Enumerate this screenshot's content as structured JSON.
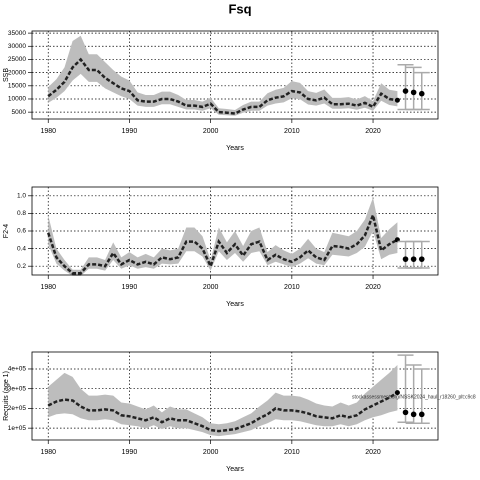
{
  "chart_data": [
    {
      "type": "line",
      "title": "Fsq",
      "ylabel": "SSB",
      "xlabel": "Years",
      "x": [
        1980,
        1981,
        1982,
        1983,
        1984,
        1985,
        1986,
        1987,
        1988,
        1989,
        1990,
        1991,
        1992,
        1993,
        1994,
        1995,
        1996,
        1997,
        1998,
        1999,
        2000,
        2001,
        2002,
        2003,
        2004,
        2005,
        2006,
        2007,
        2008,
        2009,
        2010,
        2011,
        2012,
        2013,
        2014,
        2015,
        2016,
        2017,
        2018,
        2019,
        2020,
        2021,
        2022,
        2023
      ],
      "values": [
        11000,
        13500,
        16500,
        22000,
        25000,
        21000,
        21000,
        18000,
        16000,
        14000,
        13000,
        9500,
        9000,
        9000,
        10000,
        10000,
        9000,
        7500,
        7500,
        7000,
        8200,
        5000,
        4800,
        4500,
        6000,
        7000,
        7000,
        9500,
        10500,
        11000,
        13000,
        12500,
        10000,
        9500,
        10500,
        8000,
        8000,
        8200,
        7500,
        8500,
        7000,
        12000,
        10000,
        9500
      ],
      "lower": [
        8500,
        10500,
        13000,
        17000,
        19500,
        16500,
        16500,
        14000,
        12500,
        11000,
        10000,
        7500,
        7000,
        7000,
        8000,
        8000,
        7000,
        6000,
        6000,
        5500,
        6500,
        4000,
        3800,
        3600,
        4800,
        5500,
        5500,
        7500,
        8300,
        8700,
        10300,
        9900,
        7900,
        7500,
        8300,
        6300,
        6300,
        6500,
        5900,
        6700,
        5500,
        9300,
        7700,
        7200
      ],
      "upper": [
        14500,
        17500,
        22000,
        32000,
        34000,
        27000,
        27000,
        24000,
        21000,
        18500,
        17000,
        12500,
        11500,
        11500,
        12800,
        12800,
        11500,
        9600,
        9600,
        9000,
        10500,
        6500,
        6200,
        5800,
        7700,
        9000,
        9000,
        12200,
        13500,
        14200,
        16800,
        16100,
        13000,
        12300,
        13600,
        10400,
        10400,
        10700,
        9800,
        11100,
        9200,
        16000,
        13500,
        13000
      ],
      "forecast": {
        "x": [
          2024,
          2025,
          2026
        ],
        "values": [
          13000,
          12500,
          12000
        ],
        "lower": [
          6000,
          6000,
          6000
        ],
        "upper": [
          23000,
          22000,
          20000
        ]
      },
      "xlim": [
        1978,
        2028
      ],
      "xticks": [
        1980,
        1990,
        2000,
        2010,
        2020
      ],
      "ylim": [
        2400,
        35800
      ],
      "yticks": [
        5000,
        10000,
        15000,
        20000,
        25000,
        30000,
        35000
      ],
      "grid": true,
      "line_color": "#222222",
      "band_color": "#bdbdbd",
      "bar_color": "#aaaaaa"
    },
    {
      "type": "line",
      "ylabel": "F2-4",
      "xlabel": "Years",
      "x": [
        1980,
        1981,
        1982,
        1983,
        1984,
        1985,
        1986,
        1987,
        1988,
        1989,
        1990,
        1991,
        1992,
        1993,
        1994,
        1995,
        1996,
        1997,
        1998,
        1999,
        2000,
        2001,
        2002,
        2003,
        2004,
        2005,
        2006,
        2007,
        2008,
        2009,
        2010,
        2011,
        2012,
        2013,
        2014,
        2015,
        2016,
        2017,
        2018,
        2019,
        2020,
        2021,
        2022,
        2023
      ],
      "values": [
        0.58,
        0.3,
        0.2,
        0.12,
        0.12,
        0.22,
        0.22,
        0.2,
        0.35,
        0.22,
        0.27,
        0.22,
        0.25,
        0.22,
        0.3,
        0.28,
        0.3,
        0.48,
        0.48,
        0.4,
        0.2,
        0.48,
        0.35,
        0.45,
        0.32,
        0.45,
        0.48,
        0.27,
        0.33,
        0.28,
        0.25,
        0.3,
        0.38,
        0.3,
        0.27,
        0.43,
        0.42,
        0.4,
        0.45,
        0.55,
        0.78,
        0.38,
        0.45,
        0.5
      ],
      "lower": [
        0.45,
        0.23,
        0.15,
        0.09,
        0.09,
        0.17,
        0.17,
        0.15,
        0.27,
        0.17,
        0.21,
        0.17,
        0.19,
        0.17,
        0.23,
        0.22,
        0.23,
        0.37,
        0.37,
        0.31,
        0.15,
        0.37,
        0.27,
        0.35,
        0.25,
        0.35,
        0.37,
        0.21,
        0.25,
        0.22,
        0.19,
        0.23,
        0.29,
        0.23,
        0.21,
        0.33,
        0.32,
        0.31,
        0.35,
        0.42,
        0.6,
        0.28,
        0.33,
        0.35
      ],
      "upper": [
        0.78,
        0.4,
        0.27,
        0.16,
        0.16,
        0.3,
        0.3,
        0.27,
        0.47,
        0.3,
        0.36,
        0.3,
        0.34,
        0.3,
        0.4,
        0.38,
        0.4,
        0.64,
        0.64,
        0.54,
        0.27,
        0.64,
        0.47,
        0.6,
        0.43,
        0.6,
        0.64,
        0.36,
        0.44,
        0.38,
        0.34,
        0.4,
        0.51,
        0.4,
        0.36,
        0.58,
        0.56,
        0.54,
        0.6,
        0.73,
        0.98,
        0.52,
        0.62,
        0.7
      ],
      "forecast": {
        "x": [
          2024,
          2025,
          2026
        ],
        "values": [
          0.28,
          0.28,
          0.28
        ],
        "lower": [
          0.18,
          0.18,
          0.18
        ],
        "upper": [
          0.48,
          0.48,
          0.48
        ]
      },
      "xlim": [
        1978,
        2028
      ],
      "xticks": [
        1980,
        1990,
        2000,
        2010,
        2020
      ],
      "ylim": [
        0.1,
        1.1
      ],
      "yticks": [
        0.2,
        0.4,
        0.6,
        0.8,
        {
          "value": 1,
          "label": "1.0"
        }
      ],
      "grid": true,
      "line_color": "#222222",
      "band_color": "#bdbdbd",
      "bar_color": "#aaaaaa"
    },
    {
      "type": "line",
      "ylabel": "Recruits (age 1)",
      "xlabel": "Years",
      "annotation": "stockassessment.org/NSSK2024_haul_r18260_plt:c9c8",
      "x": [
        1980,
        1981,
        1982,
        1983,
        1984,
        1985,
        1986,
        1987,
        1988,
        1989,
        1990,
        1991,
        1992,
        1993,
        1994,
        1995,
        1996,
        1997,
        1998,
        1999,
        2000,
        2001,
        2002,
        2003,
        2004,
        2005,
        2006,
        2007,
        2008,
        2009,
        2010,
        2011,
        2012,
        2013,
        2014,
        2015,
        2016,
        2017,
        2018,
        2019,
        2020,
        2021,
        2022,
        2023
      ],
      "values": [
        215000,
        235000,
        245000,
        240000,
        210000,
        190000,
        190000,
        195000,
        190000,
        165000,
        160000,
        150000,
        140000,
        155000,
        130000,
        150000,
        140000,
        140000,
        125000,
        110000,
        90000,
        85000,
        90000,
        95000,
        110000,
        125000,
        150000,
        170000,
        200000,
        190000,
        190000,
        185000,
        175000,
        160000,
        155000,
        150000,
        165000,
        155000,
        165000,
        195000,
        215000,
        235000,
        255000,
        280000
      ],
      "lower": [
        155000,
        170000,
        175000,
        170000,
        150000,
        140000,
        140000,
        145000,
        140000,
        120000,
        115000,
        110000,
        100000,
        115000,
        95000,
        110000,
        100000,
        100000,
        90000,
        80000,
        65000,
        60000,
        65000,
        70000,
        80000,
        90000,
        110000,
        125000,
        145000,
        140000,
        140000,
        135000,
        125000,
        115000,
        110000,
        110000,
        120000,
        110000,
        120000,
        140000,
        155000,
        165000,
        180000,
        190000
      ],
      "upper": [
        310000,
        345000,
        380000,
        360000,
        300000,
        265000,
        265000,
        270000,
        265000,
        230000,
        225000,
        210000,
        195000,
        215000,
        180000,
        210000,
        195000,
        195000,
        175000,
        155000,
        125000,
        120000,
        125000,
        135000,
        155000,
        175000,
        210000,
        240000,
        280000,
        265000,
        265000,
        260000,
        245000,
        225000,
        215000,
        210000,
        230000,
        215000,
        230000,
        275000,
        310000,
        345000,
        380000,
        420000
      ],
      "forecast": {
        "x": [
          2024,
          2025,
          2026
        ],
        "values": [
          180000,
          170000,
          170000
        ],
        "lower": [
          130000,
          125000,
          125000
        ],
        "upper": [
          470000,
          420000,
          400000
        ]
      },
      "xlim": [
        1978,
        2028
      ],
      "xticks": [
        1980,
        1990,
        2000,
        2010,
        2020
      ],
      "ylim": [
        40000,
        486000
      ],
      "yticks": [
        {
          "value": 100000,
          "label": "1e+05"
        },
        {
          "value": 200000,
          "label": "2e+05"
        },
        {
          "value": 300000,
          "label": "3e+05"
        },
        {
          "value": 400000,
          "label": "4e+05"
        }
      ],
      "grid": true,
      "line_color": "#222222",
      "band_color": "#bdbdbd",
      "bar_color": "#aaaaaa"
    }
  ]
}
